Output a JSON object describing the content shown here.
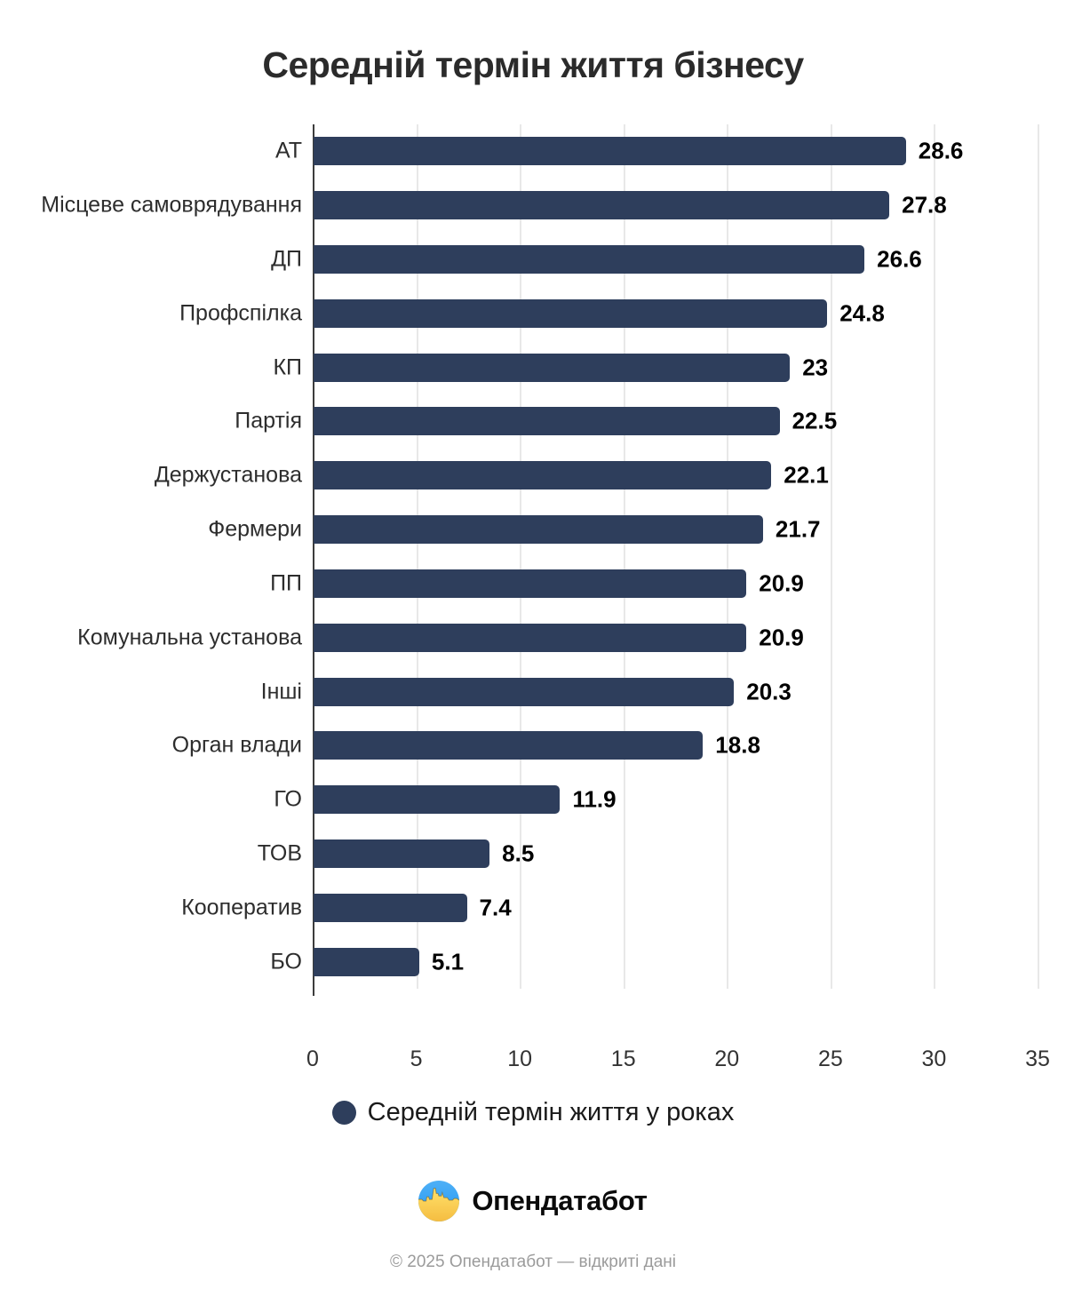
{
  "chart_data": {
    "type": "bar",
    "orientation": "horizontal",
    "title": "Середній термін життя бізнесу",
    "categories": [
      "АТ",
      "Місцеве самоврядування",
      "ДП",
      "Профспілка",
      "КП",
      "Партія",
      "Держустанова",
      "Фермери",
      "ПП",
      "Комунальна установа",
      "Інші",
      "Орган влади",
      "ГО",
      "ТОВ",
      "Кооператив",
      "БО"
    ],
    "values": [
      28.6,
      27.8,
      26.6,
      24.8,
      23,
      22.5,
      22.1,
      21.7,
      20.9,
      20.9,
      20.3,
      18.8,
      11.9,
      8.5,
      7.4,
      5.1
    ],
    "value_labels": [
      "28.6",
      "27.8",
      "26.6",
      "24.8",
      "23",
      "22.5",
      "22.1",
      "21.7",
      "20.9",
      "20.9",
      "20.3",
      "18.8",
      "11.9",
      "8.5",
      "7.4",
      "5.1"
    ],
    "xlim": [
      0,
      35
    ],
    "x_ticks": [
      "0",
      "5",
      "10",
      "15",
      "20",
      "25",
      "30",
      "35"
    ],
    "grid": true,
    "legend": {
      "label": "Середній термін життя у роках",
      "position": "bottom"
    },
    "colors": {
      "bar": "#2e3e5c",
      "gridline": "#e8e8e8",
      "axis_line": "#3c3c3c",
      "value_label": "#000000",
      "category_label": "#2d2d2d"
    }
  },
  "branding": {
    "logo_text": "Опендатабот",
    "logo_icon": "opendatabot-skyline-icon",
    "logo_colors": {
      "blue_top": "#4fb0f6",
      "blue_bottom": "#2196f3",
      "yellow_top": "#ffe06a",
      "yellow_bottom": "#f5bd41"
    }
  },
  "footer": {
    "copyright": "© 2025 Опендатабот — відкриті дані"
  }
}
